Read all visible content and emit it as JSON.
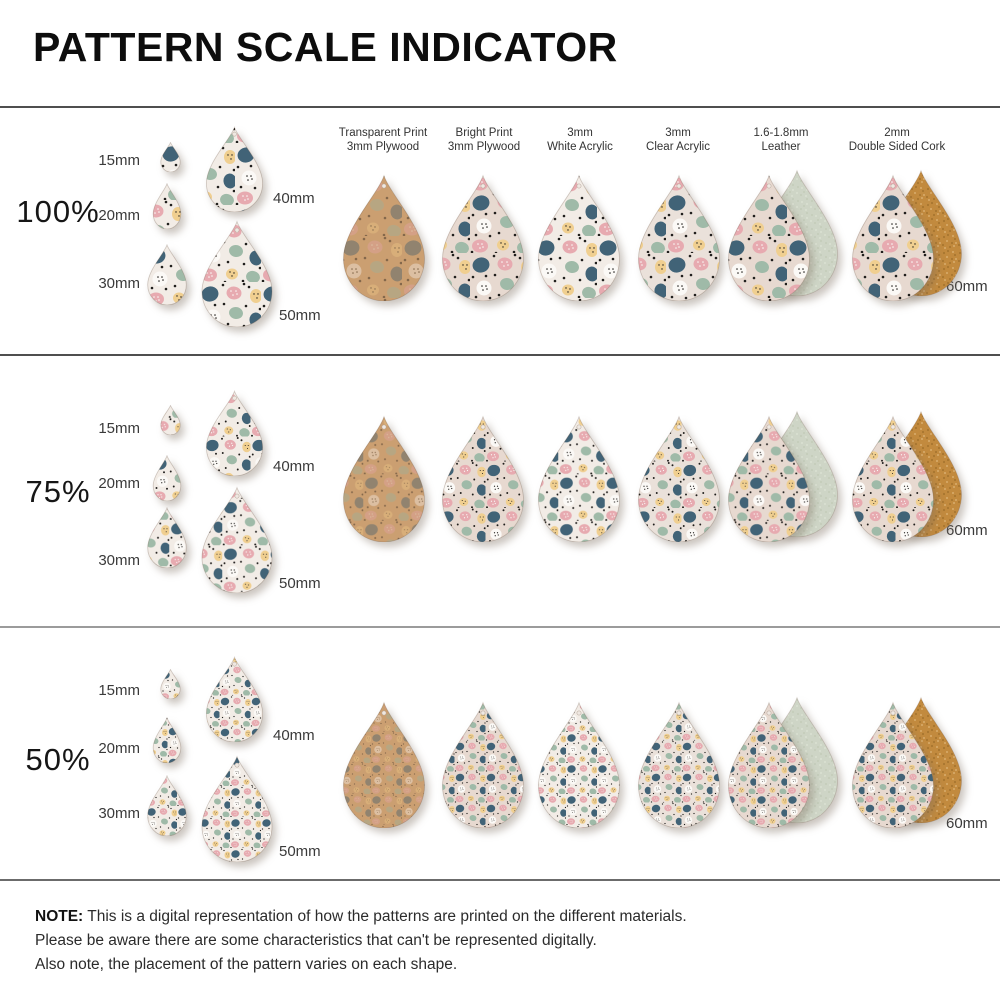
{
  "title": "PATTERN SCALE INDICATOR",
  "materials": [
    {
      "line1": "Transparent Print",
      "line2": "3mm Plywood"
    },
    {
      "line1": "Bright Print",
      "line2": "3mm Plywood"
    },
    {
      "line1": "3mm",
      "line2": "White Acrylic"
    },
    {
      "line1": "3mm",
      "line2": "Clear Acrylic"
    },
    {
      "line1": "1.6-1.8mm",
      "line2": "Leather"
    },
    {
      "line1": "2mm",
      "line2": "Double Sided Cork"
    }
  ],
  "rows": [
    {
      "scale_label": "100%",
      "pattern_scale": 1.0,
      "sizes": {
        "s15": "15mm",
        "s20": "20mm",
        "s30": "30mm",
        "s40": "40mm",
        "s50": "50mm",
        "s60": "60mm"
      }
    },
    {
      "scale_label": "75%",
      "pattern_scale": 0.75,
      "sizes": {
        "s15": "15mm",
        "s20": "20mm",
        "s30": "30mm",
        "s40": "40mm",
        "s50": "50mm",
        "s60": "60mm"
      }
    },
    {
      "scale_label": "50%",
      "pattern_scale": 0.5,
      "sizes": {
        "s15": "15mm",
        "s20": "20mm",
        "s30": "30mm",
        "s40": "40mm",
        "s50": "50mm",
        "s60": "60mm"
      }
    }
  ],
  "note": {
    "label": "NOTE:",
    "lines": [
      "This is a digital representation of how the patterns are printed on the different materials.",
      "Please be aware there are some characteristics that can't be represented digitally.",
      "Also note, the placement of the pattern varies on each shape."
    ]
  },
  "palette": {
    "pattern_base": "#e7d9d0",
    "teal": "#416377",
    "pink": "#e7aab0",
    "sage": "#9fbaa8",
    "yellow": "#f0cf90",
    "white_spot": "#fbf9f6",
    "speck_black": "#201e1c",
    "plywood": "#d2a87c",
    "plywood_tint": "#b98a55",
    "white_acrylic": "#f2ece6",
    "clear_acrylic": "#eae1da",
    "leather_back": "#ced5c6",
    "cork_back": "#c28a3e"
  }
}
